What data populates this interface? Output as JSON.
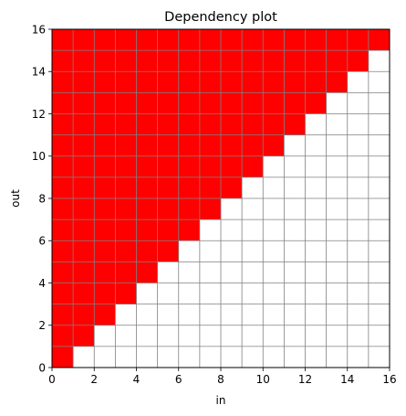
{
  "chart_data": {
    "type": "heatmap",
    "title": "Dependency plot",
    "xlabel": "in",
    "ylabel": "out",
    "xlim": [
      0,
      16
    ],
    "ylim": [
      0,
      16
    ],
    "x_ticks": [
      0,
      2,
      4,
      6,
      8,
      10,
      12,
      14,
      16
    ],
    "y_ticks": [
      0,
      2,
      4,
      6,
      8,
      10,
      12,
      14,
      16
    ],
    "grid": true,
    "size": 16,
    "rule": "cell (in, out) is dependent (filled) when in <= out",
    "dependent_color": "#ff0000",
    "independent_color": "#ffffff",
    "grid_color": "#808080",
    "dependent_cells_per_row": [
      1,
      2,
      3,
      4,
      5,
      6,
      7,
      8,
      9,
      10,
      11,
      12,
      13,
      14,
      15,
      16
    ]
  }
}
